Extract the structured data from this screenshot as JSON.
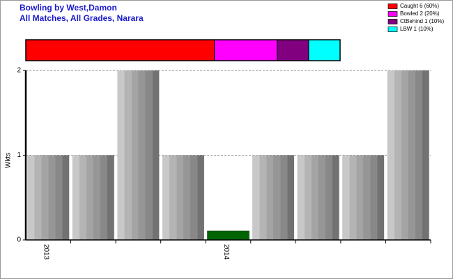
{
  "chart_data": [
    {
      "type": "stacked_share",
      "series": [
        {
          "name": "Caught 6 (60%)",
          "color": "#ff0000",
          "values": [
            6
          ]
        },
        {
          "name": "Bowled 2 (20%)",
          "color": "#ff00ff",
          "values": [
            2
          ]
        },
        {
          "name": "CtBehind 1 (10%)",
          "color": "#800080",
          "values": [
            1
          ]
        },
        {
          "name": "LBW 1 (10%)",
          "color": "#00ffff",
          "values": [
            1
          ]
        }
      ]
    },
    {
      "type": "bar",
      "title": "Bowling by West,Damon",
      "subtitle": "All Matches, All Grades, Narara",
      "y_label": "Wkts",
      "categories": [
        "2013",
        null,
        null,
        null,
        "2014",
        null,
        null,
        null,
        null
      ],
      "values": [
        1,
        1,
        2,
        1,
        0,
        1,
        1,
        1,
        2
      ],
      "color": "#a0a0a0",
      "zero_color": "#006400",
      "ylim": [
        0,
        2
      ],
      "yticks": [
        0,
        1,
        2
      ],
      "grid": true
    }
  ]
}
